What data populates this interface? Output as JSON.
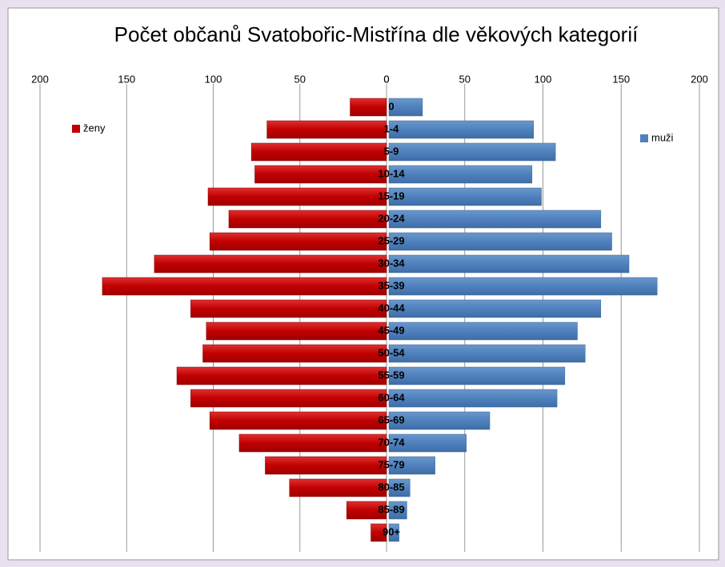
{
  "chart_data": {
    "type": "pyramid",
    "title": "Počet občanů Svatobořic-Mistřína dle věkových kategorií",
    "categories": [
      "0",
      "1-4",
      "5-9",
      "10-14",
      "15-19",
      "20-24",
      "25-29",
      "30-34",
      "35-39",
      "40-44",
      "45-49",
      "50-54",
      "55-59",
      "60-64",
      "65-69",
      "70-74",
      "75-79",
      "80-85",
      "85-89",
      "90+"
    ],
    "series": [
      {
        "name": "ženy",
        "color": "#c00000",
        "axis": "x",
        "values": [
          21,
          69,
          78,
          76,
          103,
          91,
          102,
          134,
          164,
          113,
          104,
          106,
          121,
          113,
          102,
          85,
          70,
          56,
          23,
          9
        ]
      },
      {
        "name": "muži",
        "color": "#4f81bd",
        "axis": "x2",
        "values": [
          23,
          94,
          108,
          93,
          99,
          137,
          144,
          155,
          173,
          137,
          122,
          127,
          114,
          109,
          66,
          51,
          31,
          15,
          13,
          8
        ]
      }
    ],
    "xlim": [
      0,
      200
    ],
    "xticks": [
      200,
      150,
      100,
      50,
      0
    ],
    "x2lim": [
      0,
      200
    ],
    "x2ticks": [
      0,
      50,
      100,
      150,
      200
    ],
    "grid": true
  }
}
